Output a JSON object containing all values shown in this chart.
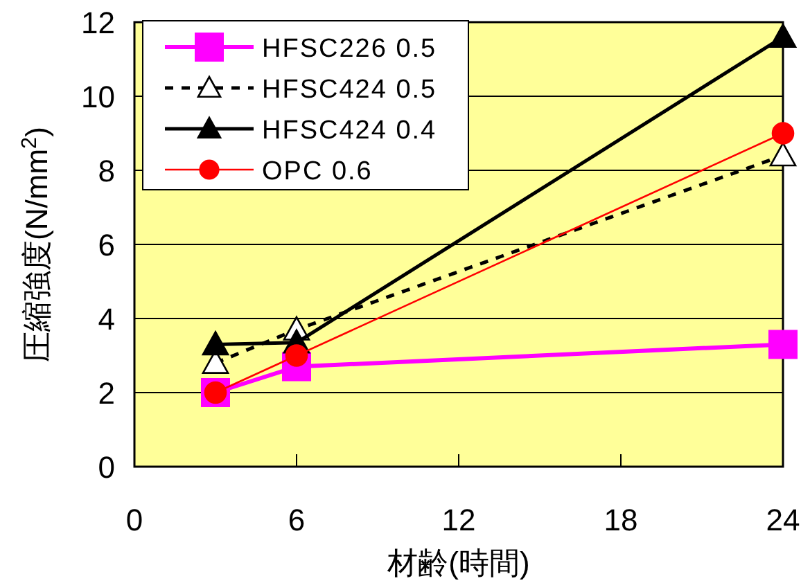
{
  "chart_data": {
    "type": "line",
    "xlabel": "材齢(時間)",
    "ylabel": "圧縮強度(N/mm$^{2}$)",
    "xlim": [
      0,
      24
    ],
    "xticks": [
      0,
      6,
      12,
      18,
      24
    ],
    "ylim": [
      0,
      12
    ],
    "yticks": [
      0,
      2,
      4,
      6,
      8,
      10,
      12
    ],
    "grid": "y",
    "legend": "top left",
    "series": [
      {
        "name": "HFSC226 0.5",
        "color": "#ff00ff",
        "marker": "square",
        "line_style": "solid",
        "x": [
          3,
          6,
          24
        ],
        "values": [
          2.0,
          2.7,
          3.3
        ]
      },
      {
        "name": "HFSC424 0.5",
        "color": "#000000",
        "marker": "triangle",
        "line_style": "dashed",
        "x": [
          3,
          6,
          24
        ],
        "values": [
          2.8,
          3.7,
          8.4
        ]
      },
      {
        "name": "HFSC424 0.4",
        "color": "#000000",
        "marker": "triangle",
        "line_style": "solid",
        "x": [
          3,
          6,
          24
        ],
        "values": [
          3.3,
          3.35,
          11.6
        ]
      },
      {
        "name": "OPC 0.6",
        "color": "#ff0000",
        "marker": "circle",
        "line_style": "solid",
        "x": [
          3,
          6,
          24
        ],
        "values": [
          2.0,
          3.0,
          9.0
        ]
      }
    ]
  }
}
